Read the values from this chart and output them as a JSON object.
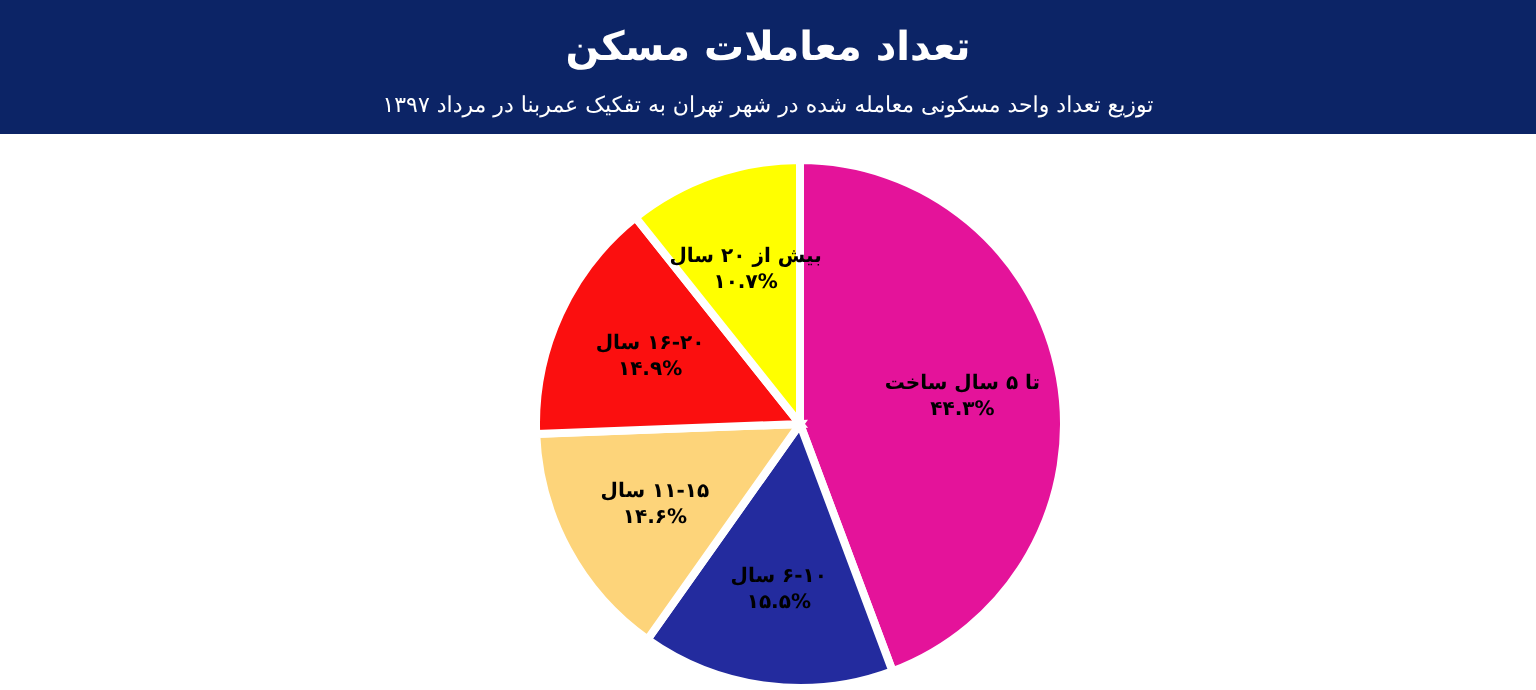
{
  "chart_data": {
    "type": "pie",
    "title": "تعداد معاملات مسکن",
    "subtitle": "توزیع تعداد واحد مسکونی معامله شده در شهر تهران به تفکیک عمربنا در مرداد ۱۳۹۷",
    "categories": [
      "تا ۵ سال ساخت",
      "۶-۱۰ سال",
      "۱۱-۱۵ سال",
      "۱۶-۲۰ سال",
      "بیش از ۲۰ سال"
    ],
    "values": [
      44.3,
      15.5,
      14.6,
      14.9,
      10.7
    ],
    "value_labels": [
      "۴۴.۳%",
      "۱۵.۵%",
      "۱۴.۶%",
      "۱۴.۹%",
      "۱۰.۷%"
    ],
    "colors": [
      "#e4139a",
      "#232b9e",
      "#fdd47a",
      "#fb0f0f",
      "#ffff00"
    ]
  }
}
